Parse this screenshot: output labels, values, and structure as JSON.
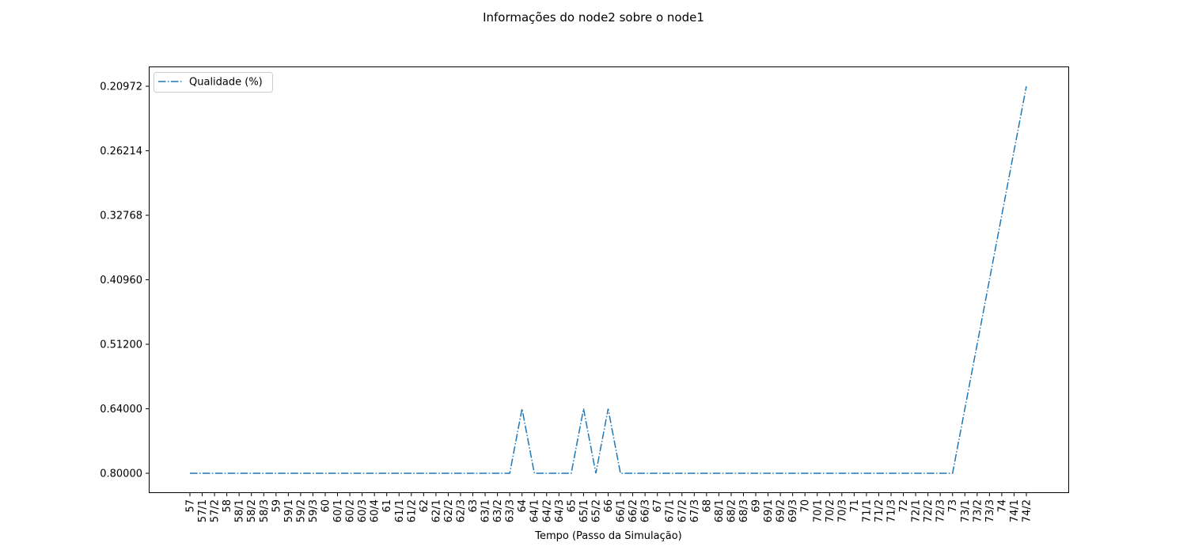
{
  "chart_data": {
    "type": "line",
    "title": "Informações do node2 sobre o node1",
    "x_label": "Tempo (Passo da Simulação)",
    "y_scale": "categorical",
    "legend": "upper left",
    "categories": [
      "57",
      "57/1",
      "57/2",
      "58",
      "58/1",
      "58/2",
      "58/3",
      "59",
      "59/1",
      "59/2",
      "59/3",
      "60",
      "60/1",
      "60/2",
      "60/3",
      "60/4",
      "61",
      "61/1",
      "61/2",
      "62",
      "62/1",
      "62/2",
      "62/3",
      "63",
      "63/1",
      "63/2",
      "63/3",
      "64",
      "64/1",
      "64/2",
      "64/3",
      "65",
      "65/1",
      "65/2",
      "66",
      "66/1",
      "66/2",
      "66/3",
      "67",
      "67/1",
      "67/2",
      "67/3",
      "68",
      "68/1",
      "68/2",
      "68/3",
      "69",
      "69/1",
      "69/2",
      "69/3",
      "70",
      "70/1",
      "70/2",
      "70/3",
      "71",
      "71/1",
      "71/2",
      "71/3",
      "72",
      "72/1",
      "72/2",
      "72/3",
      "73",
      "73/1",
      "73/2",
      "73/3",
      "74",
      "74/1",
      "74/2"
    ],
    "yticks": [
      {
        "value": 0.8,
        "label": "0.80000"
      },
      {
        "value": 0.64,
        "label": "0.64000"
      },
      {
        "value": 0.512,
        "label": "0.51200"
      },
      {
        "value": 0.4096,
        "label": "0.40960"
      },
      {
        "value": 0.32768,
        "label": "0.32768"
      },
      {
        "value": 0.26214,
        "label": "0.26214"
      },
      {
        "value": 0.20972,
        "label": "0.20972"
      }
    ],
    "series": [
      {
        "name": "Qualidade (%)",
        "color": "#1f77b4",
        "values": [
          0.8,
          0.8,
          0.8,
          0.8,
          0.8,
          0.8,
          0.8,
          0.8,
          0.8,
          0.8,
          0.8,
          0.8,
          0.8,
          0.8,
          0.8,
          0.8,
          0.8,
          0.8,
          0.8,
          0.8,
          0.8,
          0.8,
          0.8,
          0.8,
          0.8,
          0.8,
          0.8,
          0.64,
          0.8,
          0.8,
          0.8,
          0.8,
          0.64,
          0.8,
          0.64,
          0.8,
          0.8,
          0.8,
          0.8,
          0.8,
          0.8,
          0.8,
          0.8,
          0.8,
          0.8,
          0.8,
          0.8,
          0.8,
          0.8,
          0.8,
          0.8,
          0.8,
          0.8,
          0.8,
          0.8,
          0.8,
          0.8,
          0.8,
          0.8,
          0.8,
          0.8,
          0.8,
          0.8,
          0.64,
          0.512,
          0.4096,
          0.32768,
          0.26214,
          0.20972
        ]
      }
    ]
  }
}
